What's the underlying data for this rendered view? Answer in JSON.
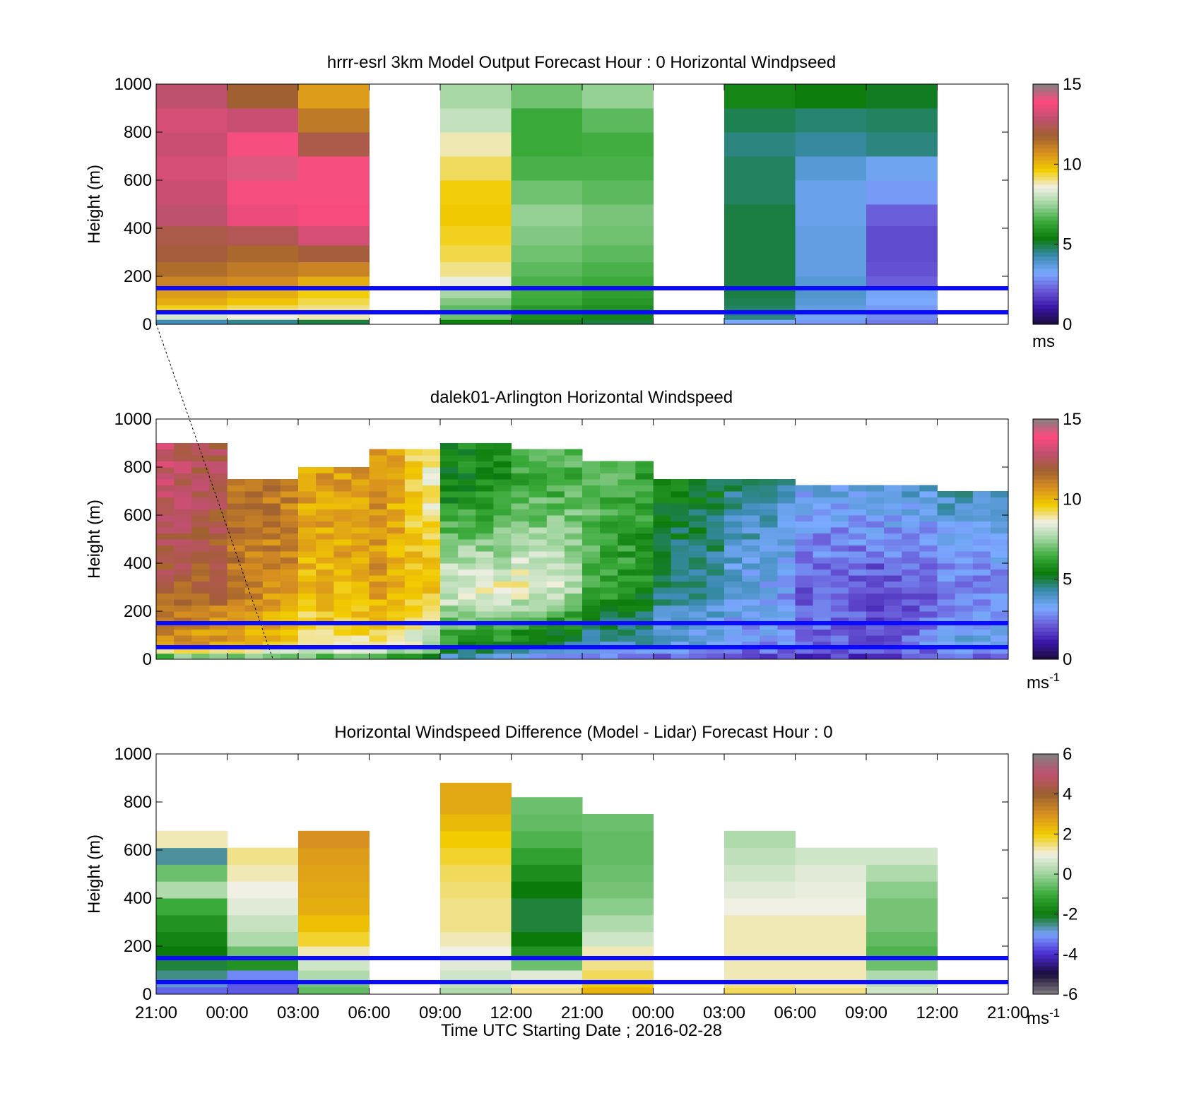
{
  "figure": {
    "xlabel": "Time UTC  Starting Date ; 2016-02-28"
  },
  "x_ticks": [
    "21:00",
    "00:00",
    "03:00",
    "06:00",
    "09:00",
    "12:00",
    "21:00",
    "00:00",
    "03:00",
    "06:00",
    "09:00",
    "12:00",
    "21:00"
  ],
  "colors": {
    "reference_lines": "#0a0aff",
    "speed_colormap": [
      "#1a0c3a",
      "#3a16a8",
      "#6a5ad8",
      "#7aaaff",
      "#3a8ab0",
      "#0a7a0a",
      "#3aaa3a",
      "#9ed49e",
      "#f0f0e4",
      "#f2cc00",
      "#d89020",
      "#a06030",
      "#c05070",
      "#ff4a80",
      "#808080"
    ],
    "diff_colormap": [
      "#808080",
      "#1a0c3a",
      "#4a2ad0",
      "#7aa0ff",
      "#0a7a0a",
      "#3aaa3a",
      "#9ed49e",
      "#f0f0e4",
      "#f2cc00",
      "#d89020",
      "#9a6030",
      "#c05070",
      "#808080"
    ]
  },
  "chart_data": [
    {
      "type": "heatmap",
      "title": "hrrr-esrl 3km Model Output   Forecast Hour : 0 Horizontal Windpseed",
      "ylabel": "Height (m)",
      "x": [
        "21:00",
        "00:00",
        "03:00",
        "06:00",
        "09:00",
        "12:00",
        "21:00",
        "00:00",
        "03:00",
        "06:00",
        "09:00",
        "12:00",
        "21:00"
      ],
      "xlim": [
        0,
        12
      ],
      "ylim": [
        0,
        1000
      ],
      "yticks": [
        "0",
        "200",
        "400",
        "600",
        "800",
        "1000"
      ],
      "height_levels": [
        20,
        50,
        80,
        110,
        150,
        200,
        260,
        330,
        410,
        500,
        600,
        700,
        800,
        900,
        1000
      ],
      "columns": [
        {
          "start": "21:00",
          "values": [
            4.2,
            8.2,
            9.5,
            10.2,
            10.5,
            11.0,
            11.5,
            12.0,
            12.2,
            12.8,
            13.0,
            13.2,
            13.0,
            13.2,
            12.8
          ]
        },
        {
          "start": "00:00",
          "values": [
            4.5,
            8.6,
            9.2,
            9.8,
            10.2,
            10.8,
            11.2,
            11.6,
            12.4,
            13.6,
            14.0,
            14.2,
            14.0,
            13.0,
            11.8
          ]
        },
        {
          "start": "03:00",
          "values": [
            5.0,
            8.8,
            9.0,
            9.3,
            9.6,
            10.2,
            11.0,
            12.0,
            13.2,
            13.8,
            14.0,
            14.0,
            12.2,
            11.2,
            10.5
          ]
        },
        {
          "start": "06:00",
          "values": []
        },
        {
          "start": "09:00",
          "values": [
            5.5,
            7.0,
            6.8,
            7.2,
            7.6,
            8.5,
            9.0,
            9.3,
            9.5,
            9.7,
            9.6,
            9.2,
            8.8,
            8.0,
            7.6
          ]
        },
        {
          "start": "12:00",
          "values": [
            5.2,
            5.8,
            6.0,
            6.4,
            6.5,
            6.6,
            6.8,
            7.0,
            7.2,
            7.4,
            7.0,
            6.6,
            6.4,
            6.4,
            7.0
          ]
        },
        {
          "start": "21:00",
          "values": [
            5.0,
            5.6,
            5.8,
            6.0,
            6.2,
            6.4,
            6.6,
            6.8,
            7.0,
            7.1,
            6.8,
            6.6,
            6.5,
            6.8,
            7.4
          ]
        },
        {
          "start": "00:00",
          "values": []
        },
        {
          "start": "03:00",
          "values": [
            3.2,
            4.6,
            4.8,
            4.9,
            5.0,
            5.0,
            5.0,
            5.0,
            5.0,
            5.0,
            4.8,
            4.8,
            4.6,
            4.9,
            5.6
          ]
        },
        {
          "start": "06:00",
          "values": [
            3.0,
            3.3,
            3.6,
            3.8,
            3.9,
            3.8,
            3.6,
            3.6,
            3.6,
            3.5,
            3.5,
            3.8,
            4.4,
            4.7,
            5.4
          ]
        },
        {
          "start": "09:00",
          "values": [
            2.6,
            2.8,
            3.0,
            3.2,
            3.3,
            2.2,
            2.0,
            1.9,
            1.9,
            2.2,
            3.0,
            3.4,
            4.6,
            4.8,
            5.2
          ]
        },
        {
          "start": "12:00",
          "values": []
        }
      ],
      "reference_lines_m": [
        50,
        150
      ],
      "colorbar": {
        "min": 0,
        "max": 15,
        "ticks": [
          "0",
          "5",
          "10",
          "15"
        ],
        "unit": "ms"
      }
    },
    {
      "type": "heatmap",
      "title": "dalek01-Arlington  Horizontal Windspeed",
      "ylabel": "Height (m)",
      "xlim": [
        0,
        12
      ],
      "ylim": [
        0,
        1000
      ],
      "yticks": [
        "0",
        "200",
        "400",
        "600",
        "800",
        "1000"
      ],
      "columns_per_segment": 4,
      "segment_profiles": [
        {
          "segment": "21:00",
          "surface": 6.0,
          "low": 10.5,
          "mid": 12.0,
          "upper": 12.8,
          "top_m": 900
        },
        {
          "segment": "00:00",
          "surface": 6.5,
          "low": 10.0,
          "mid": 11.2,
          "upper": 11.5,
          "top_m": 730
        },
        {
          "segment": "03:00",
          "surface": 6.5,
          "low": 9.2,
          "mid": 10.0,
          "upper": 10.4,
          "top_m": 780
        },
        {
          "segment": "06:00",
          "surface": 6.0,
          "low": 9.0,
          "mid": 10.5,
          "upper": 10.8,
          "top_m": 860
        },
        {
          "segment": "09:00",
          "surface": 3.5,
          "low": 6.0,
          "mid": 8.5,
          "upper": 5.5,
          "top_m": 900
        },
        {
          "segment": "12:00",
          "surface": 3.0,
          "low": 5.0,
          "mid": 8.8,
          "upper": 6.5,
          "top_m": 860
        },
        {
          "segment": "21:00",
          "surface": 2.2,
          "low": 4.2,
          "mid": 6.5,
          "upper": 6.8,
          "top_m": 820
        },
        {
          "segment": "00:00",
          "surface": 2.0,
          "low": 3.6,
          "mid": 4.6,
          "upper": 5.5,
          "top_m": 750
        },
        {
          "segment": "03:00",
          "surface": 1.8,
          "low": 3.0,
          "mid": 3.6,
          "upper": 4.6,
          "top_m": 740
        },
        {
          "segment": "06:00",
          "surface": 1.5,
          "low": 2.4,
          "mid": 2.2,
          "upper": 3.4,
          "top_m": 720
        },
        {
          "segment": "09:00",
          "surface": 1.4,
          "low": 2.2,
          "mid": 1.8,
          "upper": 3.6,
          "top_m": 720
        },
        {
          "segment": "12:00",
          "surface": 2.0,
          "low": 3.6,
          "mid": 2.6,
          "upper": 4.2,
          "top_m": 700
        }
      ],
      "reference_lines_m": [
        50,
        150
      ],
      "colorbar": {
        "min": 0,
        "max": 15,
        "ticks": [
          "0",
          "5",
          "10",
          "15"
        ],
        "unit": "ms",
        "unit_sup": "-1"
      }
    },
    {
      "type": "heatmap",
      "title": "Horizontal Windspeed Difference (Model - Lidar) Forecast Hour : 0",
      "ylabel": "Height (m)",
      "xlabel": "Time UTC  Starting Date ; 2016-02-28",
      "xlim": [
        0,
        12
      ],
      "ylim": [
        0,
        1000
      ],
      "yticks": [
        "0",
        "200",
        "400",
        "600",
        "800",
        "1000"
      ],
      "height_levels": [
        30,
        60,
        100,
        150,
        200,
        260,
        330,
        400,
        470,
        540,
        610,
        680,
        750,
        820,
        880
      ],
      "columns": [
        {
          "start": "21:00",
          "values": [
            -3.5,
            -2.8,
            -2.5,
            -2.2,
            -2.0,
            -1.8,
            -1.5,
            -1.0,
            0.2,
            -0.5,
            -2.6,
            1.2,
            null,
            null,
            null
          ]
        },
        {
          "start": "00:00",
          "values": [
            -3.6,
            -3.6,
            -3.2,
            -1.5,
            -0.5,
            0.2,
            0.5,
            0.8,
            1.0,
            1.2,
            1.4,
            null,
            null,
            null,
            null
          ]
        },
        {
          "start": "03:00",
          "values": [
            -0.6,
            -0.4,
            0.2,
            0.6,
            1.2,
            1.8,
            2.2,
            2.5,
            2.6,
            2.7,
            2.8,
            3.0,
            null,
            null,
            null
          ]
        },
        {
          "start": "06:00",
          "values": []
        },
        {
          "start": "09:00",
          "values": [
            0.2,
            0.5,
            0.6,
            0.8,
            1.0,
            1.2,
            1.4,
            1.4,
            1.5,
            1.6,
            1.8,
            2.0,
            2.3,
            2.6,
            2.6
          ]
        },
        {
          "start": "12:00",
          "values": [
            1.4,
            1.2,
            0.8,
            -0.5,
            -1.5,
            -2.0,
            -2.2,
            -2.2,
            -2.0,
            -1.6,
            -1.2,
            -0.8,
            -0.6,
            -0.5,
            null
          ]
        },
        {
          "start": "21:00",
          "values": [
            2.4,
            2.0,
            1.6,
            1.4,
            1.2,
            0.6,
            0.2,
            -0.2,
            -0.4,
            -0.5,
            -0.6,
            -0.6,
            -0.5,
            null,
            null
          ]
        },
        {
          "start": "00:00",
          "values": []
        },
        {
          "start": "03:00",
          "values": [
            1.6,
            1.4,
            1.2,
            1.2,
            1.2,
            1.2,
            1.2,
            1.0,
            0.8,
            0.6,
            0.4,
            0.2,
            null,
            null,
            null
          ]
        },
        {
          "start": "06:00",
          "values": [
            1.4,
            1.2,
            1.2,
            1.2,
            1.2,
            1.2,
            1.2,
            1.0,
            0.9,
            0.8,
            0.6,
            null,
            null,
            null,
            null
          ]
        },
        {
          "start": "09:00",
          "values": [
            0.6,
            0.4,
            0.2,
            -0.5,
            -0.8,
            -0.6,
            -0.4,
            -0.4,
            -0.2,
            0.2,
            0.6,
            null,
            null,
            null,
            null
          ]
        },
        {
          "start": "12:00",
          "values": []
        }
      ],
      "reference_lines_m": [
        50,
        150
      ],
      "colorbar": {
        "min": -6,
        "max": 6,
        "ticks": [
          "-6",
          "-4",
          "-2",
          "0",
          "2",
          "4",
          "6"
        ],
        "unit": "ms",
        "unit_sup": "-1"
      }
    }
  ]
}
